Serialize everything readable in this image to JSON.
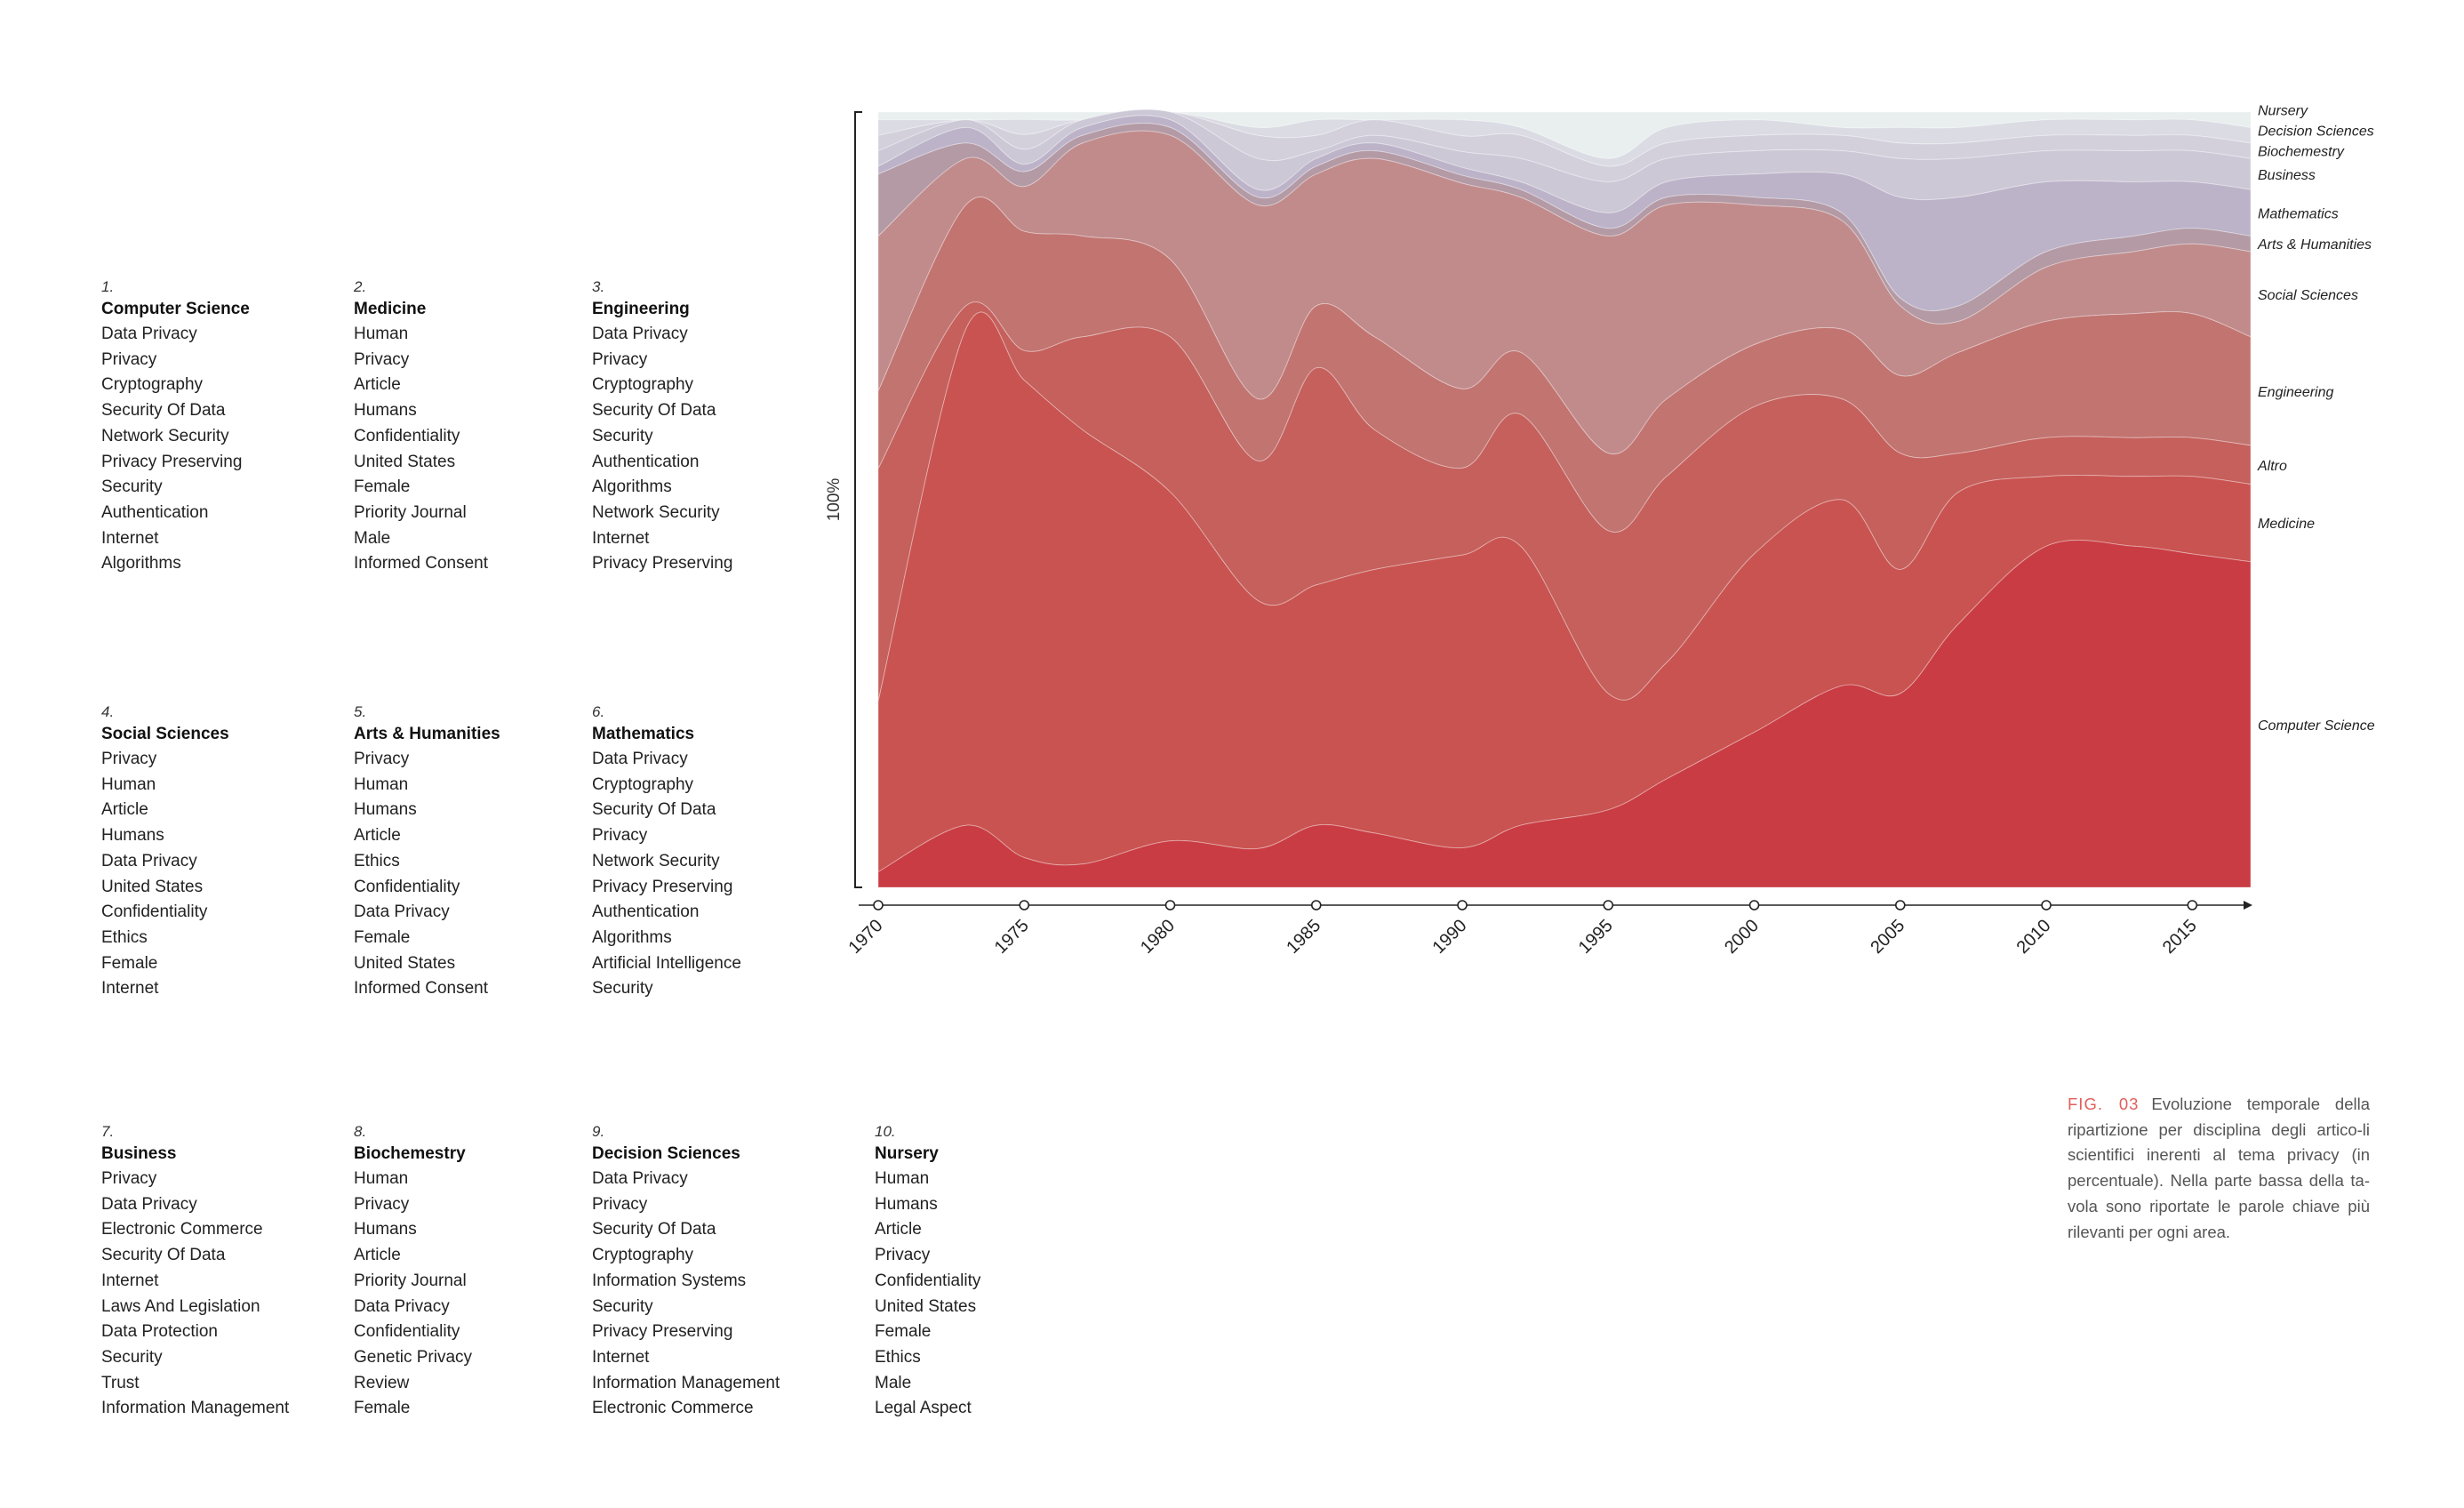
{
  "keyword_blocks": [
    {
      "num": "1.",
      "title": "Computer Science",
      "items": [
        "Data Privacy",
        "Privacy",
        "Cryptography",
        "Security Of Data",
        "Network Security",
        "Privacy Preserving",
        "Security",
        "Authentication",
        "Internet",
        "Algorithms"
      ]
    },
    {
      "num": "2.",
      "title": "Medicine",
      "items": [
        "Human",
        "Privacy",
        "Article",
        "Humans",
        "Confidentiality",
        "United States",
        "Female",
        "Priority Journal",
        "Male",
        "Informed Consent"
      ]
    },
    {
      "num": "3.",
      "title": "Engineering",
      "items": [
        "Data Privacy",
        "Privacy",
        "Cryptography",
        "Security Of Data",
        "Security",
        "Authentication",
        "Algorithms",
        "Network Security",
        "Internet",
        "Privacy Preserving"
      ]
    },
    {
      "num": "4.",
      "title": "Social Sciences",
      "items": [
        "Privacy",
        "Human",
        "Article",
        "Humans",
        "Data Privacy",
        "United States",
        "Confidentiality",
        "Ethics",
        "Female",
        "Internet"
      ]
    },
    {
      "num": "5.",
      "title": "Arts & Humanities",
      "items": [
        "Privacy",
        "Human",
        "Humans",
        "Article",
        "Ethics",
        "Confidentiality",
        "Data Privacy",
        "Female",
        "United States",
        "Informed Consent"
      ]
    },
    {
      "num": "6.",
      "title": "Mathematics",
      "items": [
        "Data Privacy",
        "Cryptography",
        "Security Of Data",
        "Privacy",
        "Network Security",
        "Privacy Preserving",
        "Authentication",
        "Algorithms",
        "Artificial Intelligence",
        "Security"
      ]
    },
    {
      "num": "7.",
      "title": "Business",
      "items": [
        "Privacy",
        "Data Privacy",
        "Electronic Commerce",
        "Security Of Data",
        "Internet",
        "Laws And Legislation",
        "Data Protection",
        "Security",
        "Trust",
        "Information Management"
      ]
    },
    {
      "num": "8.",
      "title": "Biochemestry",
      "items": [
        "Human",
        "Privacy",
        "Humans",
        "Article",
        "Priority Journal",
        "Data Privacy",
        "Confidentiality",
        "Genetic Privacy",
        "Review",
        "Female"
      ]
    },
    {
      "num": "9.",
      "title": "Decision Sciences",
      "items": [
        "Data Privacy",
        "Privacy",
        "Security Of Data",
        "Cryptography",
        "Information Systems",
        "Security",
        "Privacy Preserving",
        "Internet",
        "Information Management",
        "Electronic Commerce"
      ]
    },
    {
      "num": "10.",
      "title": "Nursery",
      "items": [
        "Human",
        "Humans",
        "Article",
        "Privacy",
        "Confidentiality",
        "United States",
        "Female",
        "Ethics",
        "Male",
        "Legal Aspect"
      ]
    }
  ],
  "caption": {
    "fig": "FIG. 03",
    "text": "Evoluzione temporale della ripartizione per disciplina degli artico-li scientifici inerenti al tema privacy (in percentuale). Nella parte bassa della ta-vola sono riportate le parole chiave più rilevanti per ogni area."
  },
  "chart_data": {
    "type": "area",
    "stacked": true,
    "normalized": true,
    "ylabel": "100%",
    "xlim": [
      1970,
      2017
    ],
    "x_ticks": [
      1970,
      1975,
      1980,
      1985,
      1990,
      1995,
      2000,
      2005,
      2010,
      2015
    ],
    "x": [
      1970,
      1973,
      1975,
      1977,
      1980,
      1983,
      1985,
      1987,
      1990,
      1992,
      1995,
      1997,
      2000,
      2003,
      2005,
      2007,
      2010,
      2013,
      2015,
      2017
    ],
    "series": [
      {
        "name": "Computer Science",
        "color": "#c93c43",
        "values": [
          2,
          8,
          4,
          3,
          6,
          5,
          8,
          7,
          5,
          8,
          10,
          14,
          20,
          26,
          25,
          34,
          44,
          44,
          43,
          42
        ]
      },
      {
        "name": "Medicine",
        "color": "#c95350",
        "values": [
          22,
          64,
          64,
          56,
          45,
          32,
          31,
          34,
          37,
          36,
          15,
          15,
          23,
          24,
          16,
          17,
          9,
          9,
          10,
          10
        ]
      },
      {
        "name": "Altro",
        "color": "#c5605c",
        "values": [
          30,
          3,
          4,
          12,
          20,
          18,
          28,
          18,
          11,
          17,
          21,
          24,
          19,
          13,
          15,
          5,
          5,
          5,
          5,
          5
        ]
      },
      {
        "name": "Engineering",
        "color": "#c27470",
        "values": [
          10,
          13,
          16,
          13,
          10,
          8,
          8,
          12,
          10,
          8,
          10,
          10,
          8,
          9,
          10,
          13,
          15,
          16,
          16,
          14
        ]
      },
      {
        "name": "Social Sciences",
        "color": "#c18b8c",
        "values": [
          20,
          6,
          6,
          12,
          16,
          25,
          17,
          23,
          26,
          20,
          28,
          25,
          18,
          14,
          9,
          4,
          7,
          8,
          9,
          11
        ]
      },
      {
        "name": "Arts & Humanities",
        "color": "#b39aa5",
        "values": [
          8,
          2,
          2,
          1,
          1,
          1,
          1,
          1,
          1,
          1,
          1,
          1,
          1,
          1,
          1,
          2,
          2,
          2,
          2,
          2
        ]
      },
      {
        "name": "Mathematics",
        "color": "#bcb3c9",
        "values": [
          1,
          2,
          1,
          1,
          1,
          1,
          1,
          1,
          1,
          1,
          2,
          2,
          3,
          5,
          13,
          14,
          9,
          7,
          6,
          6
        ]
      },
      {
        "name": "Business",
        "color": "#ccc8d6",
        "values": [
          2,
          1,
          2,
          1,
          1,
          4,
          1,
          1,
          2,
          3,
          4,
          3,
          3,
          3,
          5,
          5,
          4,
          4,
          4,
          4
        ]
      },
      {
        "name": "Biochemestry",
        "color": "#d3d0dc",
        "values": [
          2,
          0,
          2,
          0,
          0,
          3,
          2,
          2,
          2,
          3,
          2,
          2,
          2,
          2,
          2,
          2,
          2,
          2,
          2,
          2
        ]
      },
      {
        "name": "Decision Sciences",
        "color": "#dadbe3",
        "values": [
          2,
          0,
          2,
          0,
          0,
          1,
          2,
          0,
          2,
          1,
          1,
          2,
          2,
          1,
          2,
          2,
          2,
          2,
          2,
          2
        ]
      },
      {
        "name": "Nursery",
        "color": "#e8efee",
        "values": [
          1,
          1,
          1,
          1,
          0,
          2,
          1,
          1,
          1,
          2,
          6,
          2,
          1,
          2,
          2,
          2,
          1,
          1,
          1,
          2
        ]
      }
    ]
  }
}
